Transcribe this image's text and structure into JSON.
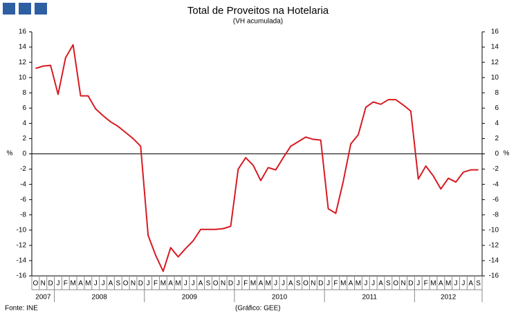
{
  "chart_data": {
    "type": "line",
    "title": "Total de Proveitos na Hotelaria",
    "subtitle": "(VH acumulada)",
    "y_label": "%",
    "y2_label": "%",
    "source": "Fonte: INE",
    "credit": "(Gráfico: GEE)",
    "categories": [
      "O",
      "N",
      "D",
      "J",
      "F",
      "M",
      "A",
      "M",
      "J",
      "J",
      "A",
      "S",
      "O",
      "N",
      "D",
      "J",
      "F",
      "M",
      "A",
      "M",
      "J",
      "J",
      "A",
      "S",
      "O",
      "N",
      "D",
      "J",
      "F",
      "M",
      "A",
      "M",
      "J",
      "J",
      "A",
      "S",
      "O",
      "N",
      "D",
      "J",
      "F",
      "M",
      "A",
      "M",
      "J",
      "J",
      "A",
      "S",
      "O",
      "N",
      "D",
      "J",
      "F",
      "M",
      "A",
      "M",
      "J",
      "J",
      "A",
      "S"
    ],
    "category_years": [
      "2007",
      "2007",
      "2007",
      "2008",
      "2008",
      "2008",
      "2008",
      "2008",
      "2008",
      "2008",
      "2008",
      "2008",
      "2008",
      "2008",
      "2008",
      "2009",
      "2009",
      "2009",
      "2009",
      "2009",
      "2009",
      "2009",
      "2009",
      "2009",
      "2009",
      "2009",
      "2009",
      "2010",
      "2010",
      "2010",
      "2010",
      "2010",
      "2010",
      "2010",
      "2010",
      "2010",
      "2010",
      "2010",
      "2010",
      "2011",
      "2011",
      "2011",
      "2011",
      "2011",
      "2011",
      "2011",
      "2011",
      "2011",
      "2011",
      "2011",
      "2011",
      "2012",
      "2012",
      "2012",
      "2012",
      "2012",
      "2012",
      "2012",
      "2012",
      "2012"
    ],
    "series": [
      {
        "color": "#d71920",
        "values": [
          11.2,
          11.5,
          11.6,
          7.8,
          12.6,
          14.3,
          7.6,
          7.6,
          5.9,
          5.0,
          4.2,
          3.6,
          2.8,
          2.0,
          1.0,
          -10.7,
          -13.3,
          -15.4,
          -12.3,
          -13.5,
          -12.4,
          -11.4,
          -9.9,
          -9.9,
          -9.9,
          -9.8,
          -9.5,
          -2.0,
          -0.5,
          -1.5,
          -3.5,
          -1.8,
          -2.1,
          -0.5,
          1.0,
          1.6,
          2.2,
          1.9,
          1.8,
          -7.2,
          -7.8,
          -3.6,
          1.3,
          2.5,
          6.1,
          6.8,
          6.5,
          7.1,
          7.1,
          6.4,
          5.6,
          -3.3,
          -1.6,
          -2.9,
          -4.6,
          -3.2,
          -3.7,
          -2.4,
          -2.1,
          -2.1
        ]
      }
    ],
    "ylim": [
      -16,
      16
    ],
    "yticks": [
      -16,
      -14,
      -12,
      -10,
      -8,
      -6,
      -4,
      -2,
      0,
      2,
      4,
      6,
      8,
      10,
      12,
      14,
      16
    ],
    "y2lim": [
      -16,
      16
    ],
    "y2ticks": [
      -16,
      -14,
      -12,
      -10,
      -8,
      -6,
      -4,
      -2,
      0,
      2,
      4,
      6,
      8,
      10,
      12,
      14,
      16
    ]
  }
}
